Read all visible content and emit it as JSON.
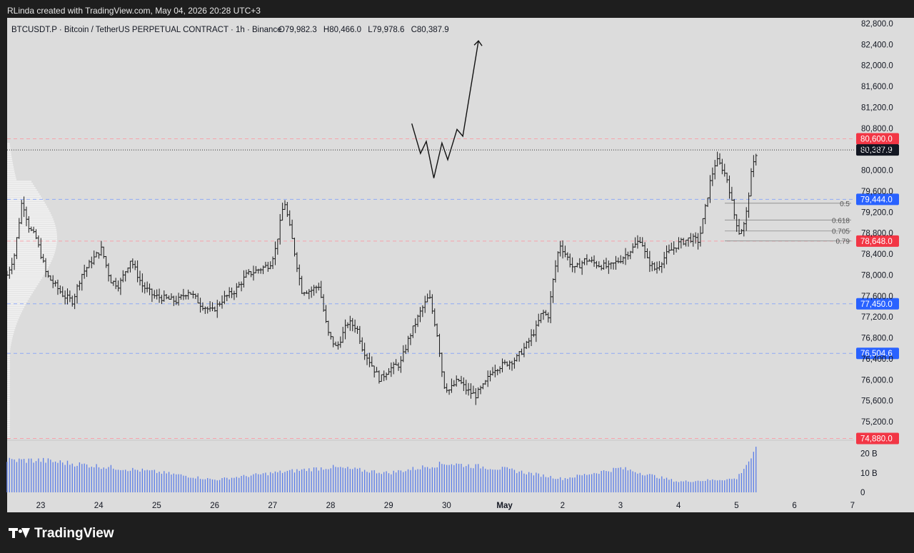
{
  "header": {
    "attribution": "RLinda created with TradingView.com, May 04, 2026 20:28 UTC+3"
  },
  "footer": {
    "logo_text": "TradingView"
  },
  "chart_data": {
    "type": "ohlc",
    "symbol_line": "BTCUSDT.P · Bitcoin / TetherUS PERPETUAL CONTRACT · 1h · Binance",
    "ohlc": {
      "o_label": "O",
      "o": "79,982.3",
      "h_label": "H",
      "h": "80,466.0",
      "l_label": "L",
      "l": "79,978.6",
      "c_label": "C",
      "c": "80,387.9"
    },
    "y_range": [
      74800,
      82900
    ],
    "y_ticks": [
      75200,
      75600,
      76000,
      76400,
      76800,
      77200,
      77600,
      78000,
      78400,
      78800,
      79200,
      79600,
      80000,
      80400,
      80800,
      81200,
      81600,
      82000,
      82400,
      82800
    ],
    "y_tick_labels": [
      "75,200.0",
      "75,600.0",
      "76,000.0",
      "76,400.0",
      "76,800.0",
      "77,200.0",
      "77,600.0",
      "78,000.0",
      "78,400.0",
      "78,800.0",
      "79,200.0",
      "79,600.0",
      "80,000.0",
      "80,400.0",
      "80,800.0",
      "81,200.0",
      "81,600.0",
      "82,000.0",
      "82,400.0",
      "82,800.0"
    ],
    "x_labels": [
      "23",
      "24",
      "25",
      "26",
      "27",
      "28",
      "29",
      "30",
      "May",
      "2",
      "3",
      "4",
      "5",
      "6",
      "7"
    ],
    "x_range_days": [
      22.42,
      29.05
    ],
    "levels": [
      {
        "price": 80600,
        "label": "80,600.0",
        "color": "#f23645",
        "style": "dash-red"
      },
      {
        "price": 80387.9,
        "label": "80,387.9",
        "color": "#131722",
        "style": "dot-current"
      },
      {
        "price": 79444,
        "label": "79,444.0",
        "color": "#2962ff",
        "style": "dash-blue"
      },
      {
        "price": 78648,
        "label": "78,648.0",
        "color": "#f23645",
        "style": "dash-red"
      },
      {
        "price": 77450,
        "label": "77,450.0",
        "color": "#2962ff",
        "style": "dash-blue"
      },
      {
        "price": 76504.6,
        "label": "76,504.6",
        "color": "#2962ff",
        "style": "dash-blue"
      },
      {
        "price": 74880,
        "label": "74,880.0",
        "color": "#f23645",
        "style": "dash-red"
      }
    ],
    "fib": [
      {
        "ratio": "0.5",
        "price": 79370
      },
      {
        "ratio": "0.618",
        "price": 79050
      },
      {
        "ratio": "0.705",
        "price": 78840
      },
      {
        "ratio": "0.79",
        "price": 78650
      }
    ],
    "volume_ticks": [
      "20 B",
      "10 B",
      "0"
    ],
    "volume_max_b": 25,
    "projection": [
      {
        "day": 29.4,
        "price": 80890
      },
      {
        "day": 29.55,
        "price": 80320
      },
      {
        "day": 29.65,
        "price": 80550
      },
      {
        "day": 29.78,
        "price": 79850
      },
      {
        "day": 29.92,
        "price": 80520
      },
      {
        "day": 30.02,
        "price": 80200
      },
      {
        "day": 30.18,
        "price": 80780
      },
      {
        "day": 30.28,
        "price": 80650
      },
      {
        "day": 30.55,
        "price": 82470
      }
    ],
    "arrow_tip": {
      "day": 30.55,
      "price": 82470
    },
    "bar_anchors": [
      [
        22.42,
        78000
      ],
      [
        22.55,
        78400
      ],
      [
        22.68,
        79440
      ],
      [
        22.8,
        78900
      ],
      [
        22.92,
        78700
      ],
      [
        23.0,
        78400
      ],
      [
        23.1,
        78000
      ],
      [
        23.25,
        77800
      ],
      [
        23.4,
        77600
      ],
      [
        23.55,
        77500
      ],
      [
        23.7,
        78000
      ],
      [
        23.9,
        78300
      ],
      [
        24.05,
        78500
      ],
      [
        24.2,
        77900
      ],
      [
        24.35,
        77800
      ],
      [
        24.55,
        78300
      ],
      [
        24.75,
        77800
      ],
      [
        24.95,
        77600
      ],
      [
        25.15,
        77550
      ],
      [
        25.35,
        77500
      ],
      [
        25.55,
        77700
      ],
      [
        25.75,
        77450
      ],
      [
        25.95,
        77300
      ],
      [
        26.15,
        77550
      ],
      [
        26.35,
        77700
      ],
      [
        26.55,
        78000
      ],
      [
        26.75,
        78100
      ],
      [
        26.95,
        78200
      ],
      [
        27.05,
        78500
      ],
      [
        27.2,
        79430
      ],
      [
        27.35,
        78600
      ],
      [
        27.5,
        77700
      ],
      [
        27.65,
        77700
      ],
      [
        27.8,
        77800
      ],
      [
        27.95,
        76900
      ],
      [
        28.1,
        76600
      ],
      [
        28.3,
        77100
      ],
      [
        28.45,
        77000
      ],
      [
        28.55,
        76600
      ],
      [
        28.7,
        76300
      ],
      [
        28.85,
        76000
      ],
      [
        29.0,
        76200
      ],
      [
        29.2,
        76300
      ],
      [
        29.35,
        76800
      ],
      [
        29.55,
        77300
      ],
      [
        29.7,
        77600
      ],
      [
        29.85,
        76800
      ],
      [
        29.95,
        75900
      ],
      [
        30.05,
        75800
      ],
      [
        30.2,
        76000
      ],
      [
        30.35,
        75800
      ],
      [
        30.5,
        75700
      ],
      [
        30.65,
        75900
      ],
      [
        30.8,
        76200
      ],
      [
        31.0,
        76300
      ],
      [
        31.2,
        76400
      ],
      [
        31.4,
        76700
      ],
      [
        31.55,
        77000
      ],
      [
        31.65,
        77300
      ],
      [
        31.75,
        77200
      ],
      [
        31.85,
        78000
      ],
      [
        31.95,
        78600
      ],
      [
        32.05,
        78400
      ],
      [
        32.2,
        78100
      ],
      [
        32.4,
        78300
      ],
      [
        32.6,
        78200
      ],
      [
        32.8,
        78150
      ],
      [
        33.0,
        78300
      ],
      [
        33.2,
        78500
      ],
      [
        33.35,
        78700
      ],
      [
        33.45,
        78300
      ],
      [
        33.6,
        78100
      ],
      [
        33.8,
        78400
      ],
      [
        34.0,
        78600
      ],
      [
        34.2,
        78700
      ],
      [
        34.35,
        78650
      ],
      [
        34.45,
        79200
      ],
      [
        34.55,
        79800
      ],
      [
        34.65,
        80200
      ],
      [
        34.75,
        80050
      ],
      [
        34.85,
        79800
      ],
      [
        34.95,
        79200
      ],
      [
        35.05,
        78800
      ],
      [
        35.15,
        79000
      ],
      [
        35.25,
        79900
      ],
      [
        35.35,
        80387.9
      ]
    ],
    "bar_volume_profile": [
      [
        23,
        16.5
      ],
      [
        24,
        13.5
      ],
      [
        25,
        10.5
      ],
      [
        26,
        6.5
      ],
      [
        27,
        10
      ],
      [
        28,
        13
      ],
      [
        29,
        10
      ],
      [
        30,
        15
      ],
      [
        31,
        12
      ],
      [
        32,
        7
      ],
      [
        33,
        12.5
      ],
      [
        34,
        5.5
      ],
      [
        35,
        7
      ],
      [
        35.35,
        22
      ]
    ]
  }
}
